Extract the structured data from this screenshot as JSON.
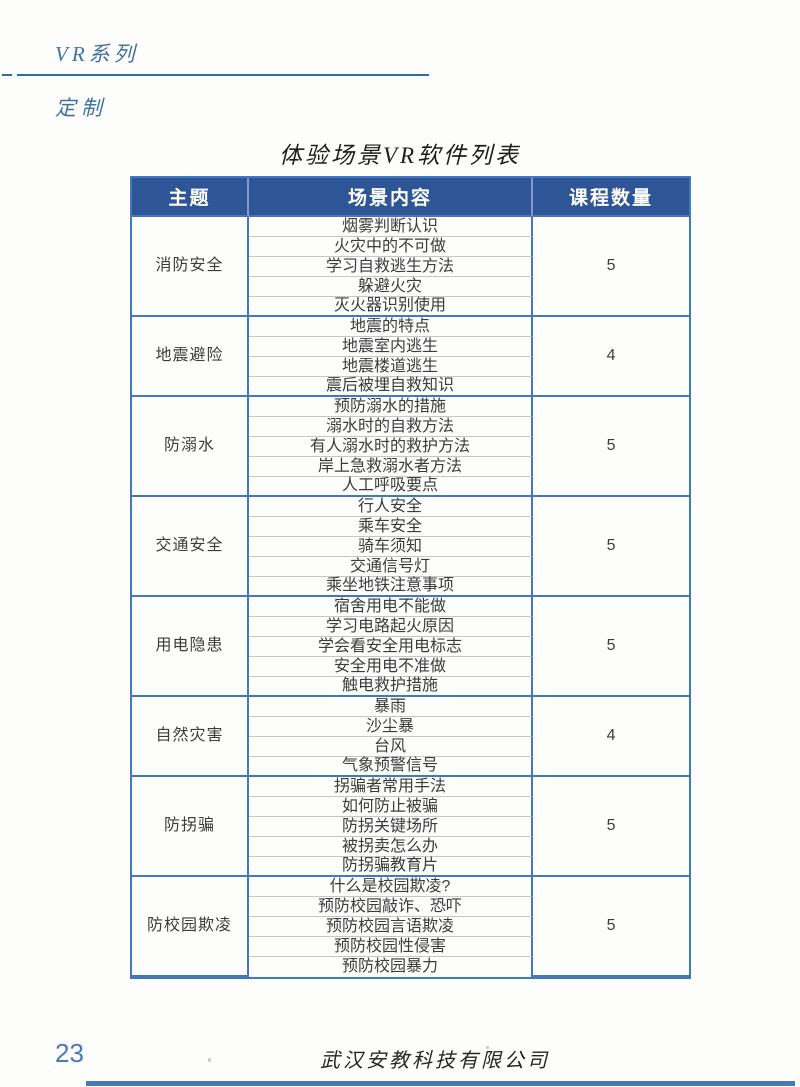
{
  "page": {
    "series_label": "VR系列",
    "custom_label": "定制",
    "title": "体验场景VR软件列表",
    "page_number": "23",
    "footer_company": "武汉安教科技有限公司"
  },
  "table": {
    "headers": [
      "主题",
      "场景内容",
      "课程数量"
    ],
    "groups": [
      {
        "theme": "消防安全",
        "scenes": [
          "烟雾判断认识",
          "火灾中的不可做",
          "学习自救逃生方法",
          "躲避火灾",
          "灭火器识别使用"
        ],
        "count": "5"
      },
      {
        "theme": "地震避险",
        "scenes": [
          "地震的特点",
          "地震室内逃生",
          "地震楼道逃生",
          "震后被埋自救知识"
        ],
        "count": "4"
      },
      {
        "theme": "防溺水",
        "scenes": [
          "预防溺水的措施",
          "溺水时的自救方法",
          "有人溺水时的救护方法",
          "岸上急救溺水者方法",
          "人工呼吸要点"
        ],
        "count": "5"
      },
      {
        "theme": "交通安全",
        "scenes": [
          "行人安全",
          "乘车安全",
          "骑车须知",
          "交通信号灯",
          "乘坐地铁注意事项"
        ],
        "count": "5"
      },
      {
        "theme": "用电隐患",
        "scenes": [
          "宿舍用电不能做",
          "学习电路起火原因",
          "学会看安全用电标志",
          "安全用电不准做",
          "触电救护措施"
        ],
        "count": "5"
      },
      {
        "theme": "自然灾害",
        "scenes": [
          "暴雨",
          "沙尘暴",
          "台风",
          "气象预警信号"
        ],
        "count": "4"
      },
      {
        "theme": "防拐骗",
        "scenes": [
          "拐骗者常用手法",
          "如何防止被骗",
          "防拐关键场所",
          "被拐卖怎么办",
          "防拐骗教育片"
        ],
        "count": "5"
      },
      {
        "theme": "防校园欺凌",
        "scenes": [
          "什么是校园欺凌?",
          "预防校园敲诈、恐吓",
          "预防校园言语欺凌",
          "预防校园性侵害",
          "预防校园暴力"
        ],
        "count": "5"
      }
    ]
  },
  "colors": {
    "accent_blue": "#3a6ea5",
    "table_header_bg": "#2e5697",
    "table_grid_blue": "#4377c0",
    "scene_divider_gray": "#c6c6c6",
    "body_text": "#3c3c3c",
    "page_number_blue": "#4a7ab5"
  }
}
